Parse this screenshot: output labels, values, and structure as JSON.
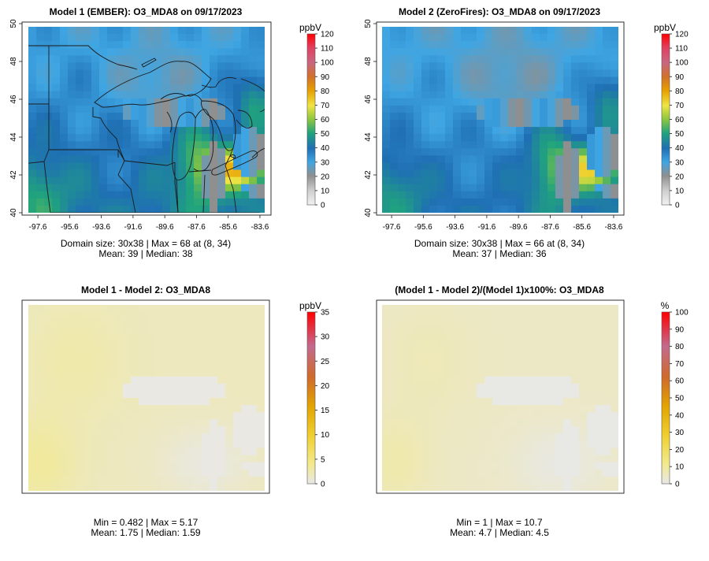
{
  "chart_data": [
    {
      "type": "heatmap",
      "title": "Model 1 (EMBER): O3_MDA8 on 09/17/2023",
      "unit": "ppbV",
      "xlim": [
        -98.2,
        -83.3
      ],
      "ylim": [
        40,
        50
      ],
      "x_ticks": [
        "-97.6",
        "-95.6",
        "-93.6",
        "-91.6",
        "-89.6",
        "-87.6",
        "-85.6",
        "-83.6"
      ],
      "y_ticks": [
        "40",
        "42",
        "44",
        "46",
        "48",
        "50"
      ],
      "colorbar": {
        "min": 0,
        "max": 120,
        "ticks": [
          "0",
          "10",
          "20",
          "30",
          "40",
          "50",
          "60",
          "70",
          "80",
          "90",
          "100",
          "110",
          "120"
        ]
      },
      "stats": {
        "line1": "Domain size: 30x38 | Max = 68 at (8, 34)",
        "line2": "Mean: 39 |  Median: 38"
      },
      "grid_cols": 30,
      "grid_rows": 38,
      "domain_size": "30x38",
      "max": 68,
      "max_cell": [
        8,
        34
      ],
      "mean": 39,
      "median": 38
    },
    {
      "type": "heatmap",
      "title": "Model 2 (ZeroFires): O3_MDA8 on 09/17/2023",
      "unit": "ppbV",
      "xlim": [
        -98.2,
        -83.3
      ],
      "ylim": [
        40,
        50
      ],
      "x_ticks": [
        "-97.6",
        "-95.6",
        "-93.6",
        "-91.6",
        "-89.6",
        "-87.6",
        "-85.6",
        "-83.6"
      ],
      "y_ticks": [
        "40",
        "42",
        "44",
        "46",
        "48",
        "50"
      ],
      "colorbar": {
        "min": 0,
        "max": 120,
        "ticks": [
          "0",
          "10",
          "20",
          "30",
          "40",
          "50",
          "60",
          "70",
          "80",
          "90",
          "100",
          "110",
          "120"
        ]
      },
      "stats": {
        "line1": "Domain size: 30x38 | Max = 66 at (8, 34)",
        "line2": "Mean: 37 |  Median: 36"
      },
      "grid_cols": 30,
      "grid_rows": 38,
      "domain_size": "30x38",
      "max": 66,
      "max_cell": [
        8,
        34
      ],
      "mean": 37,
      "median": 36
    },
    {
      "type": "heatmap",
      "title": "Model 1 - Model 2: O3_MDA8",
      "unit": "ppbV",
      "colorbar": {
        "min": 0,
        "max": 35,
        "ticks": [
          "0",
          "5",
          "10",
          "15",
          "20",
          "25",
          "30",
          "35"
        ]
      },
      "stats": {
        "line1": "Min = 0.482 | Max = 5.17",
        "line2": "Mean: 1.75 |  Median: 1.59"
      },
      "min": 0.482,
      "max": 5.17,
      "mean": 1.75,
      "median": 1.59
    },
    {
      "type": "heatmap",
      "title": "(Model 1 - Model 2)/(Model 1)x100%: O3_MDA8",
      "unit": "%",
      "colorbar": {
        "min": 0,
        "max": 100,
        "ticks": [
          "0",
          "10",
          "20",
          "30",
          "40",
          "50",
          "60",
          "70",
          "80",
          "90",
          "100"
        ]
      },
      "stats": {
        "line1": "Min = 1 | Max = 10.7",
        "line2": "Mean: 4.7 |  Median: 4.5"
      },
      "min": 1,
      "max": 10.7,
      "mean": 4.7,
      "median": 4.5
    }
  ],
  "colors": {
    "palette": [
      "#e6e6e6",
      "#8f8f8f",
      "#1f78b4",
      "#3fa6e3",
      "#20a37e",
      "#8cc63f",
      "#f0e442",
      "#e69f00",
      "#cc6677",
      "#ff0000"
    ],
    "diff_palette": [
      "#e6e6e6",
      "#f3e98a",
      "#f0d030",
      "#e3a400",
      "#d06a2a",
      "#c46a8e",
      "#ff0000"
    ]
  }
}
